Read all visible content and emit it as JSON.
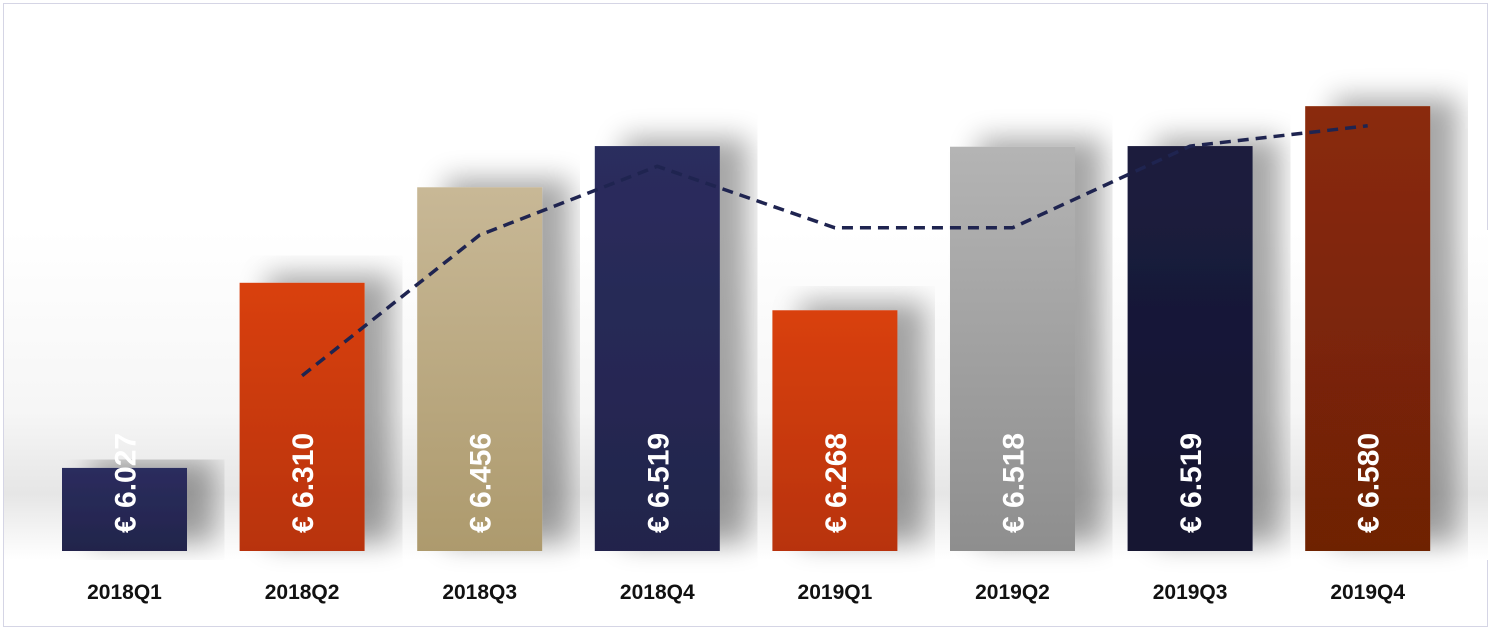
{
  "chart_data": {
    "type": "bar",
    "title": "",
    "xlabel": "",
    "ylabel": "",
    "categories": [
      "2018Q1",
      "2018Q2",
      "2018Q3",
      "2018Q4",
      "2019Q1",
      "2019Q2",
      "2019Q3",
      "2019Q4"
    ],
    "series": [
      {
        "type": "bar",
        "values": [
          6.027,
          6.31,
          6.456,
          6.519,
          6.268,
          6.518,
          6.519,
          6.58
        ],
        "labels": [
          "€ 6.027",
          "€ 6.310",
          "€ 6.456",
          "€ 6.519",
          "€ 6.268",
          "€ 6.518",
          "€ 6.519",
          "€ 6.580"
        ],
        "colors": [
          [
            "#2b2d5e",
            "#22244b"
          ],
          [
            "#d94010",
            "#b8330b"
          ],
          [
            "#c8b896",
            "#ad9a6d"
          ],
          [
            "#2b2d5e",
            "#22244b"
          ],
          [
            "#d94010",
            "#b8330b"
          ],
          [
            "#b4b4b4",
            "#8e8e8e"
          ],
          [
            "#1c1d3e",
            "#121330"
          ],
          [
            "#8a2a08",
            "#6e2006"
          ]
        ]
      },
      {
        "type": "line",
        "style": "dashed",
        "color": "#1f2450",
        "values": [
          null,
          6.168,
          6.383,
          6.488,
          6.394,
          6.394,
          6.519,
          6.55
        ]
      }
    ],
    "ylim": [
      5.9,
      6.62
    ],
    "grid": false,
    "legend": "none"
  }
}
